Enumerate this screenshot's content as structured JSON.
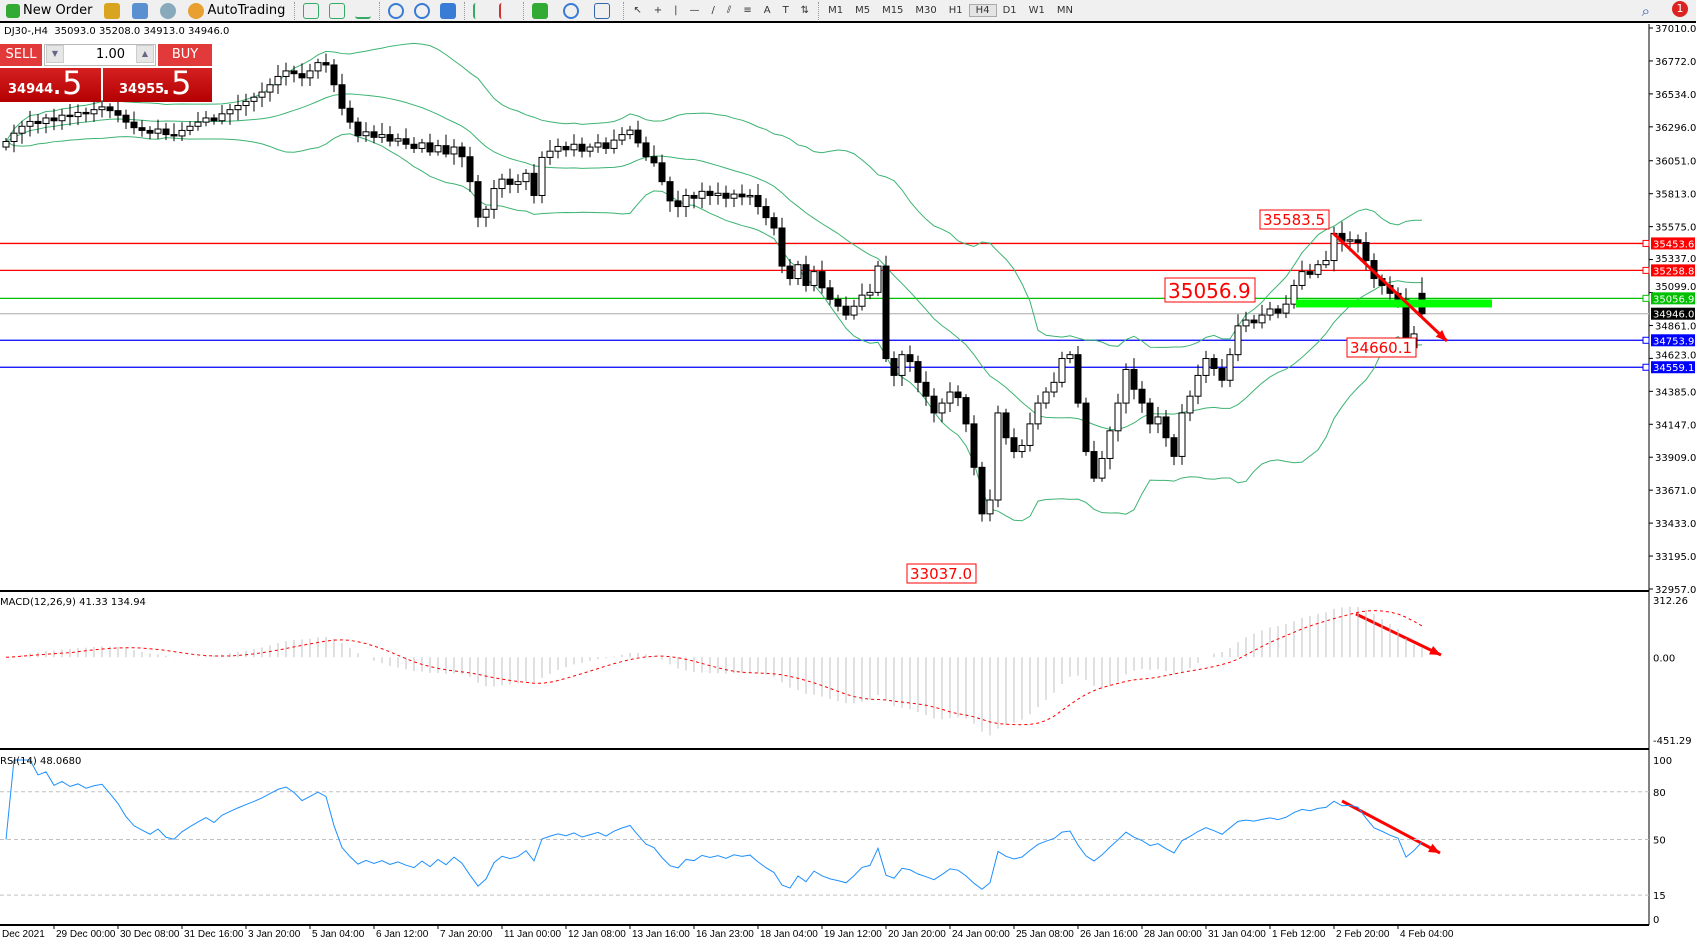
{
  "toolbar": {
    "new_order": "New Order",
    "autotrading": "AutoTrading",
    "timeframes": [
      "M1",
      "M5",
      "M15",
      "M30",
      "H1",
      "H4",
      "D1",
      "W1",
      "MN"
    ],
    "active_timeframe": "H4",
    "notification_count": "1",
    "icons": [
      "new-order-icon",
      "meta-editor-icon",
      "market-watch-icon",
      "signals-icon",
      "autotrading-icon",
      "bar-chart-icon",
      "candlestick-icon",
      "line-chart-icon",
      "zoom-in-icon",
      "zoom-out-icon",
      "tile-windows-icon",
      "autoscroll-icon",
      "chart-shift-icon",
      "indicators-icon",
      "periods-icon",
      "templates-icon",
      "cursor-icon",
      "crosshair-icon",
      "vertical-line-icon",
      "horizontal-line-icon",
      "trendline-icon",
      "equidistant-channel-icon",
      "fibonacci-icon",
      "text-icon",
      "text-label-icon",
      "arrows-icon",
      "search-icon",
      "chat-icon"
    ]
  },
  "header": {
    "symbol": "DJ30-,H4",
    "ohlc": "35093.0 35208.0 34913.0 34946.0"
  },
  "one_click": {
    "sell": "SELL",
    "buy": "BUY",
    "lot": "1.00",
    "bid_main": "34944",
    "bid_frac": ".5",
    "ask_main": "34955",
    "ask_frac": ".5"
  },
  "chart_data": {
    "type": "candlestick",
    "symbol": "DJ30-",
    "timeframe": "H4",
    "ylim": [
      32957,
      37010
    ],
    "price_ticks": [
      "37010.0",
      "36772.0",
      "36534.0",
      "36296.0",
      "36051.0",
      "35813.0",
      "35575.0",
      "35337.0",
      "35099.0",
      "34861.0",
      "34623.0",
      "34385.0",
      "34147.0",
      "33909.0",
      "33671.0",
      "33433.0",
      "33195.0",
      "32957.0"
    ],
    "time_labels": [
      "Dec 2021",
      "29 Dec 00:00",
      "30 Dec 08:00",
      "31 Dec 16:00",
      "3 Jan 20:00",
      "5 Jan 04:00",
      "6 Jan 12:00",
      "7 Jan 20:00",
      "11 Jan 00:00",
      "12 Jan 08:00",
      "13 Jan 16:00",
      "16 Jan 23:00",
      "18 Jan 04:00",
      "19 Jan 12:00",
      "20 Jan 20:00",
      "24 Jan 00:00",
      "25 Jan 08:00",
      "26 Jan 16:00",
      "28 Jan 00:00",
      "31 Jan 04:00",
      "1 Feb 12:00",
      "2 Feb 20:00",
      "4 Feb 04:00"
    ],
    "closes": [
      36190,
      36250,
      36300,
      36335,
      36320,
      36360,
      36340,
      36380,
      36370,
      36400,
      36390,
      36420,
      36440,
      36413,
      36380,
      36330,
      36290,
      36270,
      36250,
      36280,
      36240,
      36230,
      36270,
      36300,
      36330,
      36360,
      36340,
      36390,
      36420,
      36450,
      36480,
      36510,
      36547,
      36600,
      36660,
      36700,
      36680,
      36650,
      36700,
      36760,
      36743,
      36600,
      36430,
      36330,
      36232,
      36260,
      36220,
      36240,
      36193,
      36210,
      36170,
      36140,
      36180,
      36115,
      36160,
      36100,
      36150,
      36080,
      35900,
      35643,
      35700,
      35850,
      35918,
      35880,
      35900,
      35960,
      35800,
      36075,
      36120,
      36154,
      36130,
      36170,
      36120,
      36150,
      36180,
      36140,
      36200,
      36240,
      36272,
      36180,
      36080,
      36036,
      35900,
      35761,
      35720,
      35800,
      35780,
      35830,
      35800,
      35816,
      35780,
      35810,
      35790,
      35800,
      35720,
      35640,
      35565,
      35290,
      35200,
      35300,
      35150,
      35250,
      35133,
      35050,
      35000,
      34936,
      35000,
      35080,
      35100,
      35290,
      34622,
      34500,
      34650,
      34600,
      34450,
      34350,
      34229,
      34300,
      34380,
      34340,
      34150,
      33836,
      33500,
      33600,
      34229,
      34050,
      33950,
      33994,
      34150,
      34300,
      34380,
      34450,
      34622,
      34650,
      34300,
      33950,
      33758,
      33900,
      34100,
      34300,
      34543,
      34400,
      34300,
      34150,
      34200,
      34050,
      33915,
      34229,
      34350,
      34500,
      34622,
      34550,
      34465,
      34650,
      34858,
      34900,
      34880,
      34936,
      34980,
      34950,
      35015,
      35150,
      35250,
      35230,
      35300,
      35330,
      35526,
      35470,
      35480,
      35460,
      35330,
      35200,
      35150,
      35093,
      35050,
      34700,
      34800,
      34946
    ],
    "last_bar": {
      "open": 35093.0,
      "high": 35208.0,
      "low": 34913.0,
      "close": 34946.0
    },
    "levels": [
      {
        "price": "35453.6",
        "color": "#ff0000"
      },
      {
        "price": "35258.8",
        "color": "#ff0000"
      },
      {
        "price": "35056.9",
        "color": "#00c000"
      },
      {
        "price": "34946.0",
        "color": "#000000",
        "line": "#c0c0c0"
      },
      {
        "price": "34753.9",
        "color": "#0000ff"
      },
      {
        "price": "34559.1",
        "color": "#0000ff"
      }
    ],
    "annotations": [
      "35583.5",
      "35056.9",
      "34660.1",
      "33037.0"
    ],
    "green_zone_price": 35020,
    "bollinger_color": "#3cb371",
    "macd": {
      "label": "MACD(12,26,9) 41.33 134.94",
      "ylim": [
        -451.29,
        312.26
      ],
      "ticks": [
        "312.26",
        "0.00",
        "-451.29"
      ],
      "hist_color": "#c0c0c0",
      "signal_color": "#ff0000"
    },
    "rsi": {
      "label": "RSI(14) 48.0680",
      "ylim": [
        0,
        100
      ],
      "ticks": [
        "100",
        "80",
        "50",
        "15",
        "0"
      ],
      "levels": [
        80,
        50,
        15
      ],
      "color": "#1e90ff"
    },
    "arrow_color": "#ff0000"
  }
}
